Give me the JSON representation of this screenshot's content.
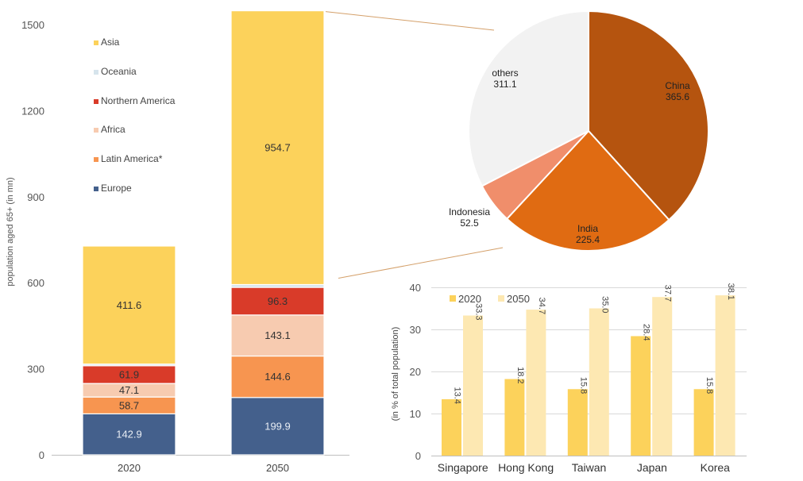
{
  "chart_data": [
    {
      "type": "bar",
      "stacked": true,
      "title": "",
      "ylabel": "population aged 65+ (in mn)",
      "ylim": [
        0,
        1550
      ],
      "yticks": [
        0,
        300,
        600,
        900,
        1200,
        1500
      ],
      "categories": [
        "2020",
        "2050"
      ],
      "legend_order": [
        "Asia",
        "Oceania",
        "Northern America",
        "Africa",
        "Latin America*",
        "Europe"
      ],
      "series": [
        {
          "name": "Europe",
          "color": "#44608c",
          "values": [
            142.9,
            199.9
          ],
          "labels": [
            "142.9",
            "199.9"
          ]
        },
        {
          "name": "Latin America*",
          "color": "#f79550",
          "values": [
            58.7,
            144.6
          ],
          "labels": [
            "58.7",
            "144.6"
          ]
        },
        {
          "name": "Africa",
          "color": "#f7cbb0",
          "values": [
            47.1,
            143.1
          ],
          "labels": [
            "47.1",
            "143.1"
          ]
        },
        {
          "name": "Northern America",
          "color": "#d93b29",
          "values": [
            61.9,
            96.3
          ],
          "labels": [
            "61.9",
            "96.3"
          ]
        },
        {
          "name": "Oceania",
          "color": "#d6e4ec",
          "values": [
            5.8,
            9.8
          ],
          "labels": [
            "",
            ""
          ]
        },
        {
          "name": "Asia",
          "color": "#fcd25b",
          "values": [
            411.6,
            954.7
          ],
          "labels": [
            "411.6",
            "954.7"
          ]
        }
      ]
    },
    {
      "type": "pie",
      "title": "",
      "slices": [
        {
          "name": "China",
          "value": 365.6,
          "label": "365.6",
          "color": "#b5540f",
          "text_color": "#222222"
        },
        {
          "name": "India",
          "value": 225.4,
          "label": "225.4",
          "color": "#e06b12",
          "text_color": "#222222"
        },
        {
          "name": "Indonesia",
          "value": 52.5,
          "label": "52.5",
          "color": "#f08e6b",
          "text_color": "#222222"
        },
        {
          "name": "others",
          "value": 311.1,
          "label": "311.1",
          "color": "#f2f2f2",
          "text_color": "#222222"
        }
      ]
    },
    {
      "type": "bar",
      "title": "",
      "ylabel": "(in % of total population)",
      "ylim": [
        0,
        40
      ],
      "yticks": [
        0,
        10,
        20,
        30,
        40
      ],
      "categories": [
        "Singapore",
        "Hong Kong",
        "Taiwan",
        "Japan",
        "Korea"
      ],
      "series": [
        {
          "name": "2020",
          "color": "#fcd25b",
          "values": [
            13.4,
            18.2,
            15.8,
            28.4,
            15.8
          ],
          "labels": [
            "13.4",
            "18.2",
            "15.8",
            "28.4",
            "15.8"
          ]
        },
        {
          "name": "2050",
          "color": "#fde8b2",
          "values": [
            33.3,
            34.7,
            35.0,
            37.7,
            38.1
          ],
          "labels": [
            "33.3",
            "34.7",
            "35.0",
            "37.7",
            "38.1"
          ]
        }
      ]
    }
  ]
}
